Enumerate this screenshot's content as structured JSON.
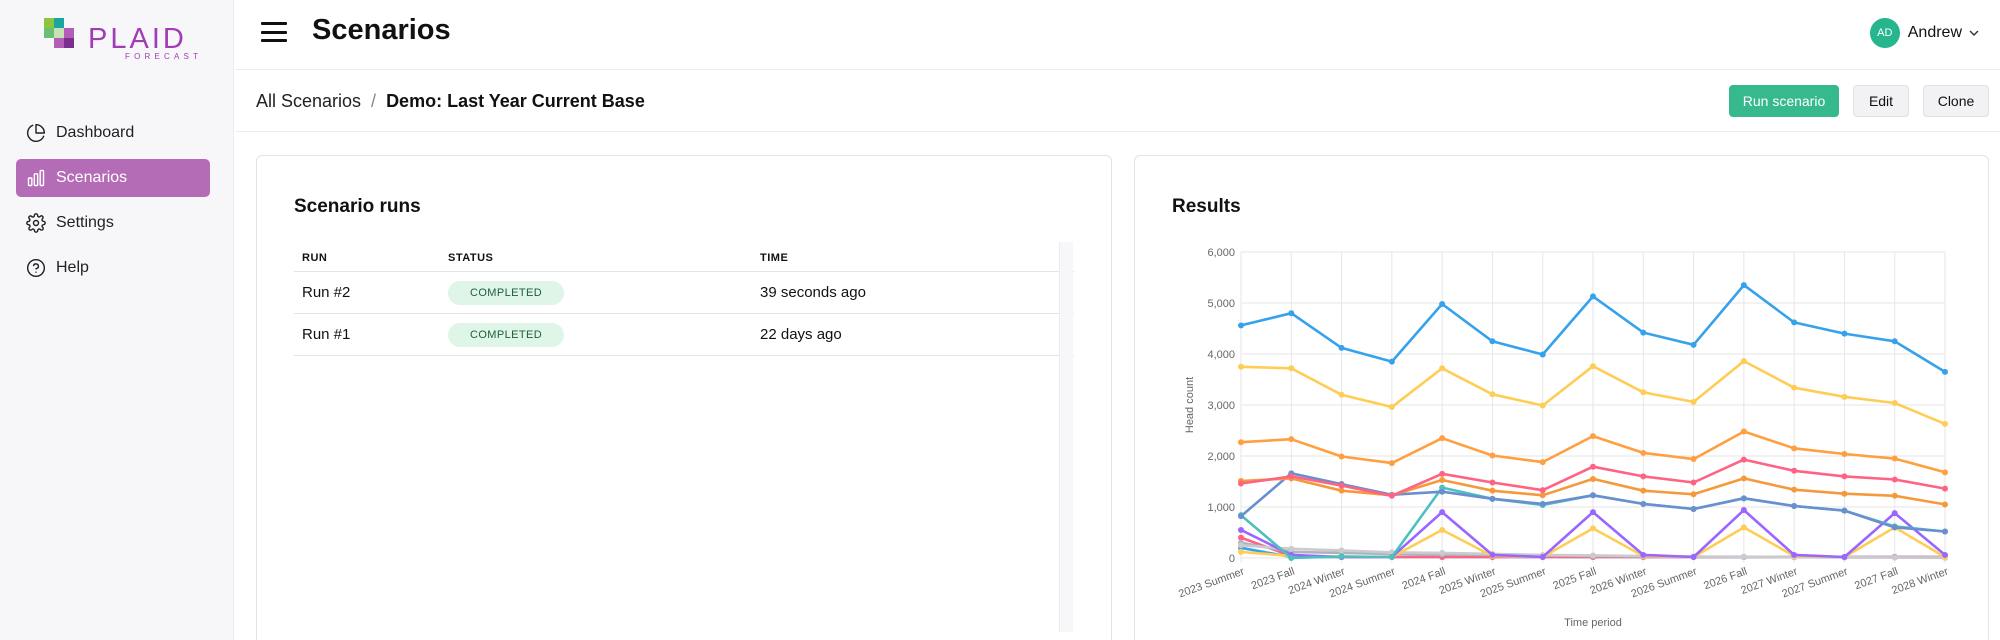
{
  "logo": {
    "text": "PLAID",
    "sub": "FORECAST",
    "squares": [
      "#8cc63f",
      "#1aa5a0",
      "#6bbf73",
      "#c6e3b5",
      "#b35db8",
      "#7a2e8e"
    ]
  },
  "sidebar": {
    "items": [
      {
        "label": "Dashboard",
        "icon": "pie-chart-icon",
        "active": false
      },
      {
        "label": "Scenarios",
        "icon": "bar-chart-icon",
        "active": true
      },
      {
        "label": "Settings",
        "icon": "gear-icon",
        "active": false
      },
      {
        "label": "Help",
        "icon": "question-circle-icon",
        "active": false
      }
    ]
  },
  "header": {
    "title": "Scenarios",
    "user": {
      "initials": "AD",
      "name": "Andrew"
    }
  },
  "breadcrumb": {
    "root": "All Scenarios",
    "separator": "/",
    "current": "Demo: Last Year Current Base"
  },
  "actions": {
    "run_label": "Run scenario",
    "edit_label": "Edit",
    "clone_label": "Clone"
  },
  "runs": {
    "title": "Scenario runs",
    "columns": [
      "RUN",
      "STATUS",
      "TIME"
    ],
    "rows": [
      {
        "run": "Run #2",
        "status": "COMPLETED",
        "time": "39 seconds ago"
      },
      {
        "run": "Run #1",
        "status": "COMPLETED",
        "time": "22 days ago"
      }
    ]
  },
  "results": {
    "title": "Results"
  },
  "chart_data": {
    "type": "line",
    "xlabel": "Time period",
    "ylabel": "Head count",
    "ylim": [
      0,
      6000
    ],
    "yticks": [
      0,
      1000,
      2000,
      3000,
      4000,
      5000,
      6000
    ],
    "ytick_labels": [
      "0",
      "1,000",
      "2,000",
      "3,000",
      "4,000",
      "5,000",
      "6,000"
    ],
    "grid": true,
    "categories": [
      "2023 Summer",
      "2023 Fall",
      "2024 Winter",
      "2024 Summer",
      "2024 Fall",
      "2025 Winter",
      "2025 Summer",
      "2025 Fall",
      "2026 Winter",
      "2026 Summer",
      "2026 Fall",
      "2027 Winter",
      "2027 Summer",
      "2027 Fall",
      "2028 Winter"
    ],
    "series": [
      {
        "color": "#36a2eb",
        "values": [
          4560,
          4800,
          4120,
          3850,
          4980,
          4250,
          3990,
          5130,
          4420,
          4180,
          5350,
          4620,
          4400,
          4250,
          3650
        ]
      },
      {
        "color": "#ffcd56",
        "values": [
          3750,
          3720,
          3200,
          2960,
          3720,
          3210,
          2990,
          3760,
          3250,
          3060,
          3860,
          3340,
          3160,
          3040,
          2630
        ]
      },
      {
        "color": "#ff9f40",
        "values": [
          2270,
          2330,
          1990,
          1860,
          2350,
          2010,
          1880,
          2390,
          2060,
          1940,
          2480,
          2150,
          2040,
          1950,
          1680
        ]
      },
      {
        "color": "#ff6384",
        "values": [
          1460,
          1600,
          1420,
          1220,
          1650,
          1480,
          1330,
          1790,
          1600,
          1480,
          1930,
          1710,
          1600,
          1540,
          1360
        ]
      },
      {
        "color": "#f59a3c",
        "values": [
          1510,
          1560,
          1320,
          1230,
          1530,
          1320,
          1230,
          1550,
          1320,
          1250,
          1560,
          1340,
          1260,
          1220,
          1050
        ]
      },
      {
        "color": "#6a8fcf",
        "values": [
          820,
          1660,
          1450,
          1240,
          1300,
          1160,
          1060,
          1230,
          1060,
          960,
          1170,
          1020,
          930,
          600,
          520
        ]
      },
      {
        "color": "#4bc0c0",
        "values": [
          840,
          0,
          30,
          20,
          1380,
          1160,
          1040,
          1230,
          1060,
          960,
          1170,
          1020,
          930,
          620,
          520
        ]
      },
      {
        "color": "#9966ff",
        "values": [
          550,
          60,
          20,
          20,
          900,
          60,
          20,
          900,
          60,
          20,
          940,
          60,
          20,
          880,
          60
        ]
      },
      {
        "color": "#ffcd56",
        "values": [
          120,
          40,
          30,
          20,
          550,
          40,
          20,
          580,
          40,
          20,
          600,
          40,
          20,
          600,
          20
        ]
      },
      {
        "color": "#c9cbcf",
        "values": [
          250,
          180,
          150,
          110,
          100,
          80,
          60,
          50,
          40,
          30,
          25,
          20,
          15,
          10,
          10
        ]
      },
      {
        "color": "#b0b3bb",
        "values": [
          300,
          120,
          100,
          80,
          70,
          60,
          50,
          40,
          30,
          25,
          20,
          15,
          10,
          10,
          5
        ]
      },
      {
        "color": "#ff6384",
        "values": [
          400,
          40,
          20,
          20,
          20,
          20,
          20,
          20,
          20,
          20,
          20,
          20,
          20,
          20,
          20
        ]
      },
      {
        "color": "#36a2eb",
        "values": [
          200,
          20,
          20,
          20,
          20,
          20,
          20,
          20,
          20,
          20,
          20,
          20,
          20,
          20,
          20
        ]
      }
    ]
  }
}
